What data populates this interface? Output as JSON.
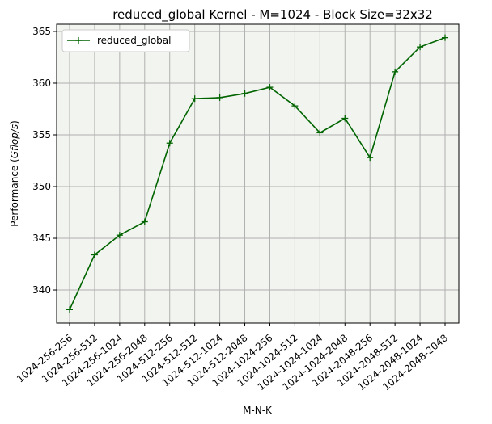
{
  "chart_data": {
    "type": "line",
    "title": "reduced_global Kernel - M=1024 - Block Size=32x32",
    "xlabel": "M-N-K",
    "ylabel_prefix": "Performance (",
    "ylabel_unit": "Gflop/s",
    "ylabel_suffix": ")",
    "categories": [
      "1024-256-256",
      "1024-256-512",
      "1024-256-1024",
      "1024-256-2048",
      "1024-512-256",
      "1024-512-512",
      "1024-512-1024",
      "1024-512-2048",
      "1024-1024-256",
      "1024-1024-512",
      "1024-1024-1024",
      "1024-1024-2048",
      "1024-2048-256",
      "1024-2048-512",
      "1024-2048-1024",
      "1024-2048-2048"
    ],
    "series": [
      {
        "name": "reduced_global",
        "color": "#006400",
        "marker": "plus",
        "values": [
          338.1,
          343.4,
          345.3,
          346.6,
          354.2,
          358.5,
          358.6,
          359.0,
          359.6,
          357.8,
          355.2,
          356.6,
          352.8,
          361.1,
          363.5,
          364.4
        ]
      }
    ],
    "yticks": [
      340,
      345,
      350,
      355,
      360,
      365
    ],
    "ylim": [
      336.8,
      365.7
    ],
    "grid": true,
    "legend_position": "top-left",
    "plot_background": "#f2f5ef",
    "grid_color": "#b0b0b0"
  }
}
